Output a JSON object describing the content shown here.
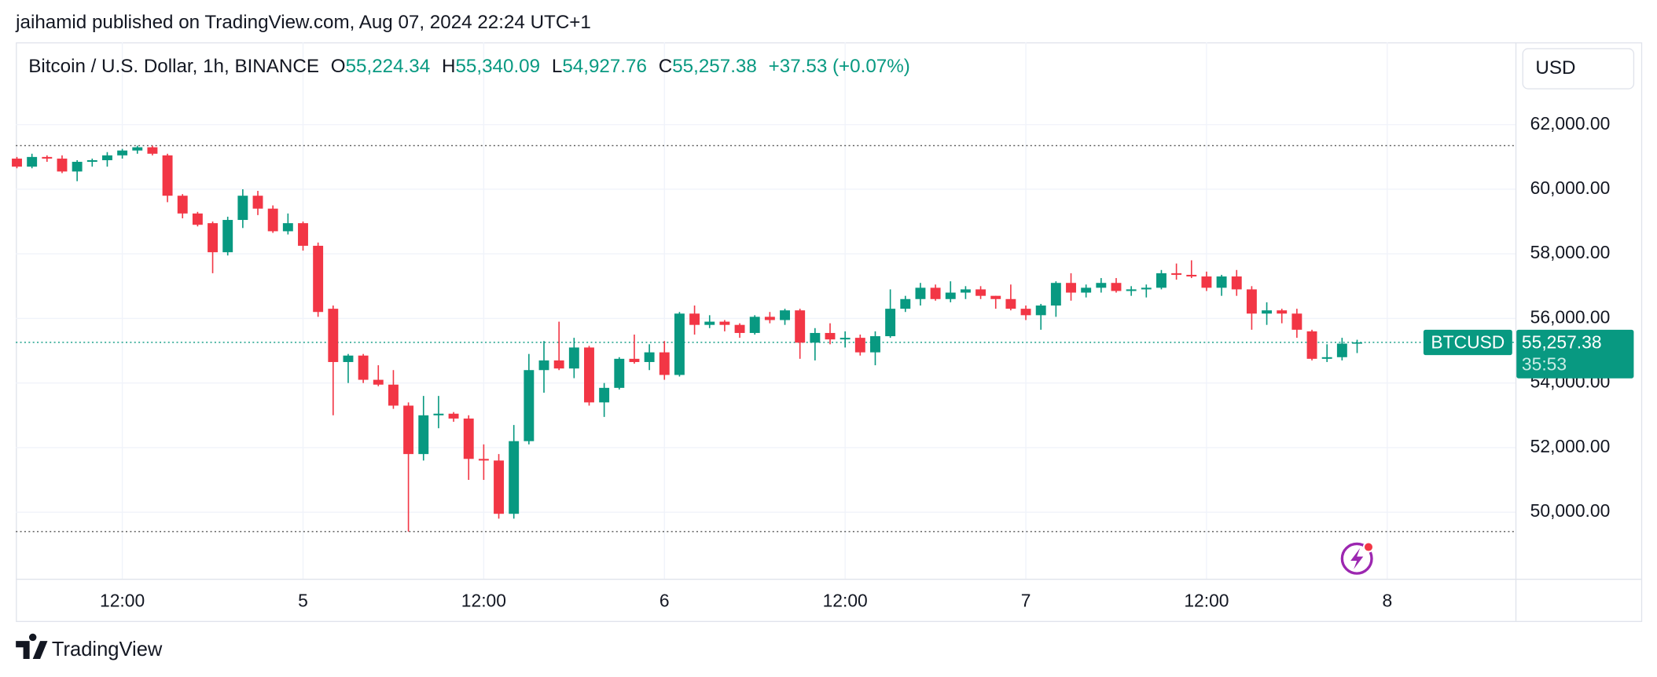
{
  "published": "jaihamid published on TradingView.com, Aug 07, 2024 22:24 UTC+1",
  "brand": "TradingView",
  "currency_button": "USD",
  "chart_data": {
    "type": "candlestick",
    "title": "Bitcoin / U.S. Dollar, 1h, BINANCE",
    "ohlc_legend": [
      {
        "key": "O",
        "value": "55,224.34"
      },
      {
        "key": "H",
        "value": "55,340.09"
      },
      {
        "key": "L",
        "value": "54,927.76"
      },
      {
        "key": "C",
        "value": "55,257.38"
      }
    ],
    "change": "+37.53 (+0.07%)",
    "up_color": "#089981",
    "down_color": "#f23645",
    "grid": true,
    "xlim": [
      -0.07,
      99.51
    ],
    "xticks": [
      {
        "value": 7,
        "label": "12:00"
      },
      {
        "value": 19,
        "label": "5"
      },
      {
        "value": 31,
        "label": "12:00"
      },
      {
        "value": 43,
        "label": "6"
      },
      {
        "value": 55,
        "label": "12:00"
      },
      {
        "value": 67,
        "label": "7"
      },
      {
        "value": 79,
        "label": "12:00"
      },
      {
        "value": 91,
        "label": "8"
      }
    ],
    "ylim": [
      47940,
      64550
    ],
    "yticks": [
      {
        "value": 50000,
        "label": "50,000.00"
      },
      {
        "value": 52000,
        "label": "52,000.00"
      },
      {
        "value": 54000,
        "label": "54,000.00"
      },
      {
        "value": 56000,
        "label": "56,000.00"
      },
      {
        "value": 58000,
        "label": "58,000.00"
      },
      {
        "value": 60000,
        "label": "60,000.00"
      },
      {
        "value": 62000,
        "label": "62,000.00"
      }
    ],
    "series": [
      {
        "name": "BTCUSD",
        "open": [
          60950,
          60700,
          61000,
          60950,
          60550,
          60850,
          60900,
          61050,
          61200,
          61300,
          61050,
          59800,
          59250,
          58950,
          58050,
          59050,
          59800,
          59400,
          58700,
          58950,
          58250,
          56300,
          54650,
          54850,
          54100,
          53950,
          53300,
          51800,
          53000,
          53050,
          52900,
          51650,
          51600,
          49950,
          52200,
          54400,
          54700,
          54450,
          55100,
          53400,
          53850,
          54750,
          54650,
          54950,
          54250,
          56150,
          55800,
          55900,
          55800,
          55550,
          56050,
          55950,
          56250,
          55250,
          55550,
          55350,
          55400,
          54950,
          55450,
          56300,
          56600,
          56950,
          56600,
          56800,
          56900,
          56700,
          56600,
          56300,
          56100,
          56400,
          57100,
          56800,
          56950,
          57100,
          56850,
          56900,
          56950,
          57400,
          57350,
          57300,
          56950,
          57300,
          56900,
          56150,
          56250,
          56150,
          55600,
          54750,
          54800,
          55224.34
        ],
        "high": [
          61000,
          61100,
          61050,
          61050,
          60900,
          60950,
          61150,
          61250,
          61350,
          61350,
          61100,
          59850,
          59300,
          59000,
          59150,
          60000,
          59950,
          59500,
          59250,
          59000,
          58350,
          56400,
          54900,
          54900,
          54550,
          54400,
          53400,
          53600,
          53600,
          53100,
          53000,
          52100,
          51800,
          52700,
          54900,
          55300,
          55900,
          55400,
          55150,
          54000,
          54800,
          55500,
          55200,
          55300,
          56200,
          56400,
          56100,
          55950,
          55850,
          56100,
          56200,
          56300,
          56300,
          55700,
          55850,
          55600,
          55500,
          55600,
          56900,
          56700,
          57100,
          57050,
          57150,
          57000,
          57000,
          56700,
          57050,
          56400,
          56450,
          57150,
          57400,
          57050,
          57250,
          57250,
          57000,
          57050,
          57500,
          57700,
          57800,
          57450,
          57350,
          57500,
          57000,
          56500,
          56300,
          56300,
          55650,
          55200,
          55400,
          55340.09
        ],
        "low": [
          60650,
          60650,
          60850,
          60500,
          60250,
          60700,
          60700,
          60950,
          61100,
          61050,
          59600,
          59100,
          58850,
          57400,
          57950,
          58800,
          59200,
          58650,
          58600,
          58100,
          56050,
          53000,
          54000,
          54000,
          53900,
          53200,
          49400,
          51600,
          52600,
          52800,
          51000,
          51000,
          49800,
          49800,
          52100,
          53700,
          54400,
          54150,
          53300,
          52950,
          53800,
          54600,
          54400,
          54100,
          54200,
          55500,
          55700,
          55600,
          55400,
          55500,
          55850,
          55800,
          54750,
          54700,
          55200,
          55100,
          54850,
          54550,
          55400,
          56200,
          56400,
          56550,
          56500,
          56600,
          56600,
          56300,
          56250,
          55950,
          55650,
          56050,
          56550,
          56650,
          56800,
          56800,
          56700,
          56650,
          56900,
          57200,
          57250,
          56850,
          56700,
          56700,
          55650,
          55800,
          55850,
          55400,
          54700,
          54650,
          54700,
          54927.76
        ],
        "close": [
          60700,
          61000,
          60950,
          60550,
          60850,
          60900,
          61050,
          61200,
          61300,
          61100,
          59800,
          59250,
          58900,
          58050,
          59050,
          59800,
          59400,
          58700,
          58950,
          58250,
          56200,
          54650,
          54850,
          54100,
          53950,
          53300,
          51800,
          53000,
          53050,
          52900,
          51650,
          51600,
          49950,
          52200,
          54400,
          54700,
          54450,
          55100,
          53400,
          53850,
          54750,
          54650,
          54950,
          54250,
          56150,
          55800,
          55900,
          55800,
          55550,
          56050,
          55950,
          56250,
          55250,
          55550,
          55350,
          55400,
          54950,
          55450,
          56300,
          56600,
          56950,
          56600,
          56800,
          56900,
          56700,
          56600,
          56300,
          56100,
          56400,
          57100,
          56800,
          56950,
          57100,
          56850,
          56900,
          56950,
          57400,
          57350,
          57300,
          56950,
          57300,
          56900,
          56150,
          56250,
          56150,
          55650,
          54750,
          54800,
          55220,
          55257.38
        ]
      }
    ],
    "price_label": {
      "value": "55,257.38",
      "countdown": "35:53"
    }
  }
}
